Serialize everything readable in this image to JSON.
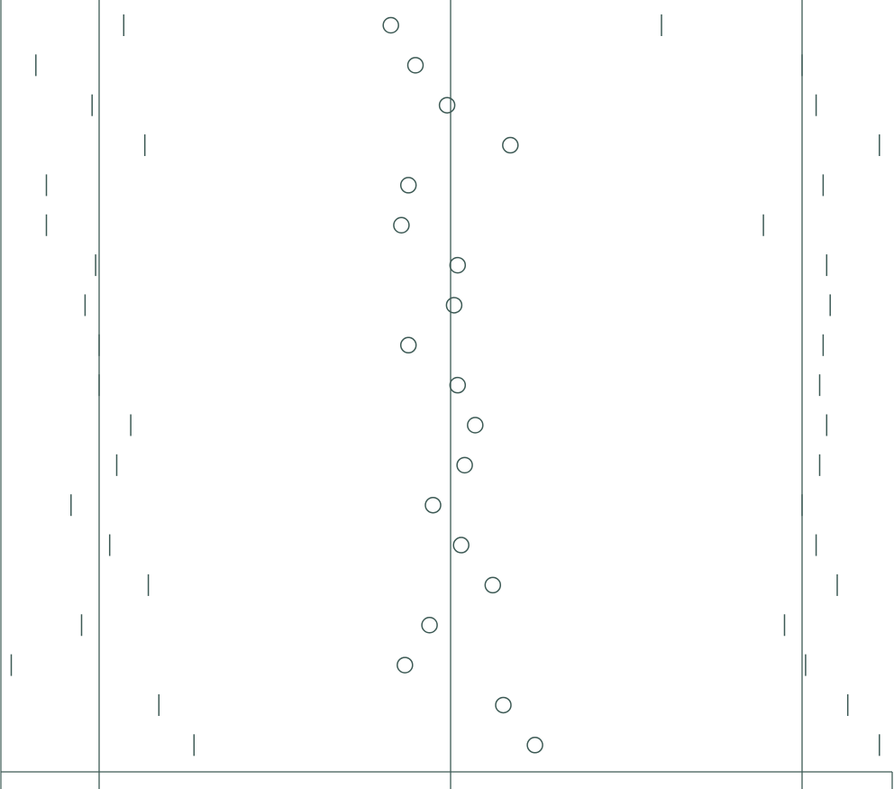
{
  "chart_data": {
    "type": "scatter",
    "title": "",
    "xlabel": "",
    "ylabel": "",
    "reference_lines": [
      -1,
      0,
      1
    ],
    "x_range": [
      -1.28,
      1.22
    ],
    "rows": [
      {
        "estimate": -0.17,
        "lower": -0.93,
        "upper": 0.6
      },
      {
        "estimate": -0.1,
        "lower": -1.18,
        "upper": 1.0
      },
      {
        "estimate": -0.01,
        "lower": -1.02,
        "upper": 1.04
      },
      {
        "estimate": 0.17,
        "lower": -0.87,
        "upper": 1.22
      },
      {
        "estimate": -0.12,
        "lower": -1.15,
        "upper": 1.06
      },
      {
        "estimate": -0.14,
        "lower": -1.15,
        "upper": 0.89
      },
      {
        "estimate": 0.02,
        "lower": -1.01,
        "upper": 1.07
      },
      {
        "estimate": 0.01,
        "lower": -1.04,
        "upper": 1.08
      },
      {
        "estimate": -0.12,
        "lower": -1.0,
        "upper": 1.06
      },
      {
        "estimate": 0.02,
        "lower": -1.0,
        "upper": 1.05
      },
      {
        "estimate": 0.07,
        "lower": -0.91,
        "upper": 1.07
      },
      {
        "estimate": 0.04,
        "lower": -0.95,
        "upper": 1.05
      },
      {
        "estimate": -0.05,
        "lower": -1.08,
        "upper": 1.0
      },
      {
        "estimate": 0.03,
        "lower": -0.97,
        "upper": 1.04
      },
      {
        "estimate": 0.12,
        "lower": -0.86,
        "upper": 1.1
      },
      {
        "estimate": -0.06,
        "lower": -1.05,
        "upper": 0.95
      },
      {
        "estimate": -0.13,
        "lower": -1.25,
        "upper": 1.01
      },
      {
        "estimate": 0.15,
        "lower": -0.83,
        "upper": 1.13
      },
      {
        "estimate": 0.24,
        "lower": -0.73,
        "upper": 1.22
      }
    ],
    "colors": {
      "stroke": "#3d5a55",
      "background": "#ffffff"
    }
  }
}
